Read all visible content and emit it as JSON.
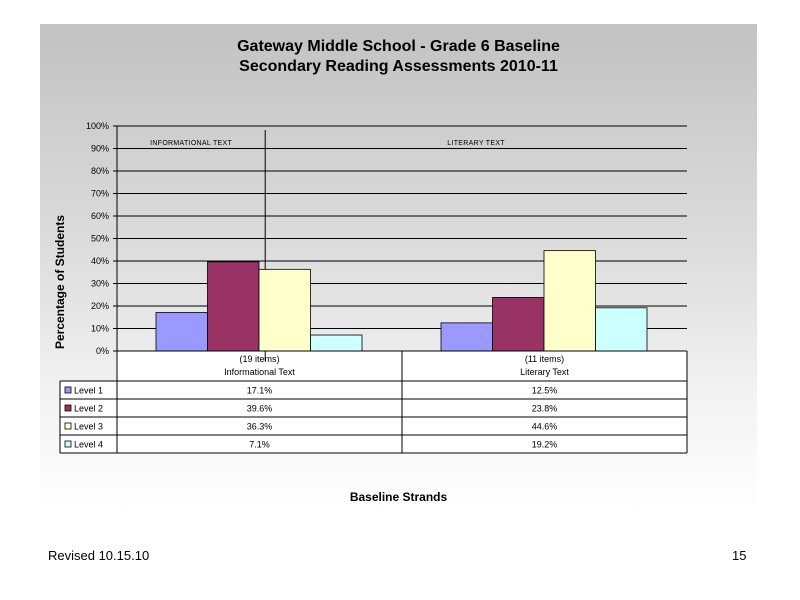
{
  "chart_data": {
    "type": "bar",
    "title": "Gateway Middle School - Grade 6 Baseline",
    "subtitle": "Secondary Reading Assessments 2010-11",
    "ylabel": "Percentage of Students",
    "xlabel": "Baseline Strands",
    "ylim": [
      0,
      100
    ],
    "yticks": [
      "100%",
      "90%",
      "80%",
      "70%",
      "60%",
      "50%",
      "40%",
      "30%",
      "20%",
      "10%",
      "0%"
    ],
    "grid": true,
    "legend_placement": "table-left",
    "categories": [
      {
        "items": "(19 items)",
        "name": "Informational Text",
        "panel_label": "INFORMATIONAL TEXT"
      },
      {
        "items": "(11 items)",
        "name": "Literary Text",
        "panel_label": "LITERARY TEXT"
      }
    ],
    "series": [
      {
        "name": "Level 1",
        "color": "#9999ff",
        "values": [
          17.1,
          12.5
        ],
        "labels": [
          "17.1%",
          "12.5%"
        ]
      },
      {
        "name": "Level 2",
        "color": "#993366",
        "values": [
          39.6,
          23.8
        ],
        "labels": [
          "39.6%",
          "23.8%"
        ]
      },
      {
        "name": "Level 3",
        "color": "#ffffcc",
        "values": [
          36.3,
          44.6
        ],
        "labels": [
          "36.3%",
          "44.6%"
        ]
      },
      {
        "name": "Level 4",
        "color": "#ccffff",
        "values": [
          7.1,
          19.2
        ],
        "labels": [
          "7.1%",
          "19.2%"
        ]
      }
    ]
  },
  "footer": {
    "revised": "Revised  10.15.10",
    "page_number": "15"
  }
}
